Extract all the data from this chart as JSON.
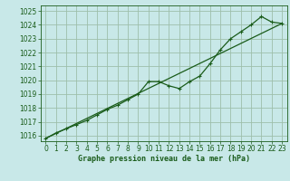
{
  "xlabel": "Graphe pression niveau de la mer (hPa)",
  "bg_color": "#c8e8e8",
  "line_color": "#1a5c1a",
  "grid_color": "#9dbfaa",
  "text_color": "#1a5c1a",
  "xlim": [
    -0.5,
    23.5
  ],
  "ylim": [
    1015.6,
    1025.4
  ],
  "yticks": [
    1016,
    1017,
    1018,
    1019,
    1020,
    1021,
    1022,
    1023,
    1024,
    1025
  ],
  "xticks": [
    0,
    1,
    2,
    3,
    4,
    5,
    6,
    7,
    8,
    9,
    10,
    11,
    12,
    13,
    14,
    15,
    16,
    17,
    18,
    19,
    20,
    21,
    22,
    23
  ],
  "line1_x": [
    0,
    1,
    2,
    3,
    4,
    5,
    6,
    7,
    8,
    9,
    10,
    11,
    12,
    13,
    14,
    15,
    16,
    17,
    18,
    19,
    20,
    21,
    22,
    23
  ],
  "line1_y": [
    1015.8,
    1016.2,
    1016.5,
    1016.8,
    1017.1,
    1017.5,
    1017.9,
    1018.2,
    1018.6,
    1019.0,
    1019.9,
    1019.9,
    1019.6,
    1019.4,
    1019.9,
    1020.3,
    1021.2,
    1022.2,
    1023.0,
    1023.5,
    1024.0,
    1024.6,
    1024.2,
    1024.1
  ],
  "line2_x": [
    0,
    23
  ],
  "line2_y": [
    1015.8,
    1024.1
  ]
}
